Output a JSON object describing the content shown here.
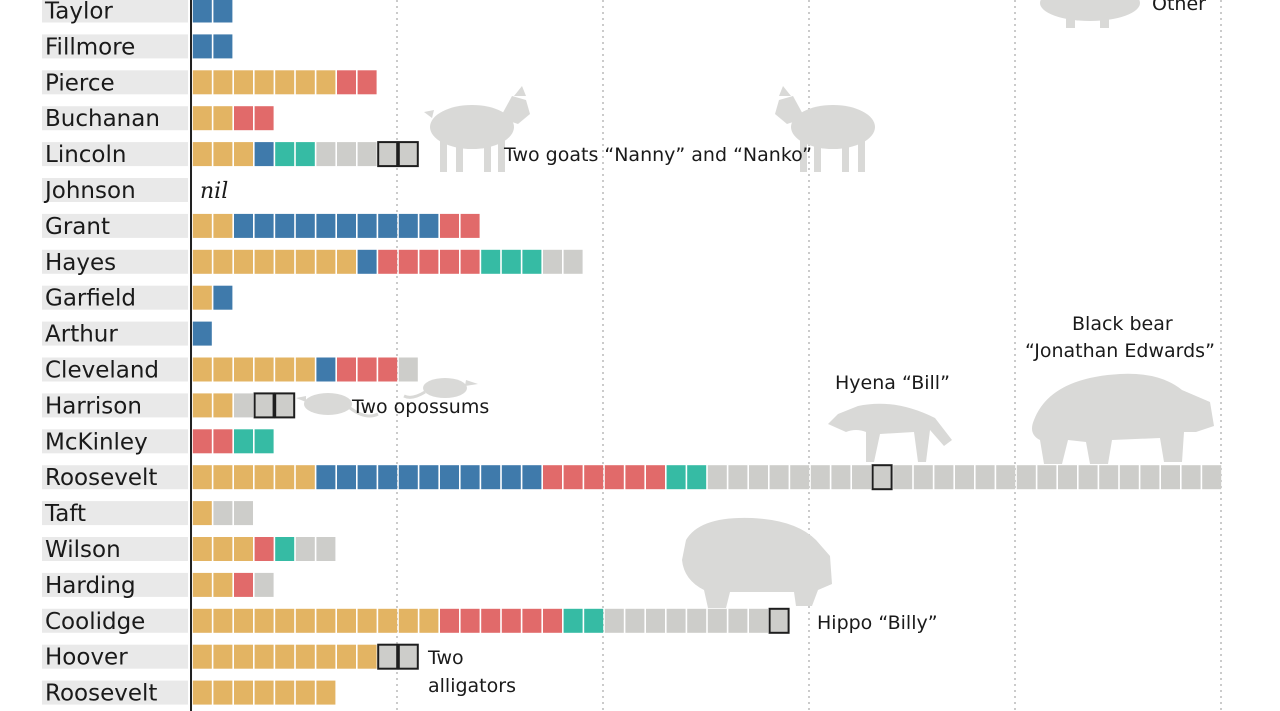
{
  "colors": {
    "dog": "#e3b463",
    "horse": "#3f7aab",
    "bird": "#e16a6a",
    "cat": "#36bba4",
    "other": "#cdcdca",
    "highlight": "#cdcdca",
    "label_bg": "#e9e9e9"
  },
  "legend": {
    "other_label": "Other"
  },
  "chart_data": {
    "type": "bar",
    "orientation": "horizontal-stacked-units",
    "title": "",
    "xlabel": "",
    "ylabel": "",
    "grid": true,
    "segment_order": [
      "dog",
      "horse",
      "bird",
      "cat",
      "other",
      "highlight"
    ],
    "rows": [
      {
        "name": "Taylor",
        "counts": {
          "horse": 2
        }
      },
      {
        "name": "Fillmore",
        "counts": {
          "horse": 2
        }
      },
      {
        "name": "Pierce",
        "counts": {
          "dog": 7,
          "bird": 2
        }
      },
      {
        "name": "Buchanan",
        "counts": {
          "dog": 2,
          "bird": 2
        }
      },
      {
        "name": "Lincoln",
        "counts": {
          "dog": 3,
          "horse": 1,
          "cat": 2,
          "other": 3,
          "highlight": 2
        }
      },
      {
        "name": "Johnson",
        "counts": {},
        "note": "nil"
      },
      {
        "name": "Grant",
        "counts": {
          "dog": 2,
          "horse": 10,
          "bird": 2
        }
      },
      {
        "name": "Hayes",
        "counts": {
          "dog": 8,
          "horse": 1,
          "bird": 5,
          "cat": 3,
          "other": 2
        }
      },
      {
        "name": "Garfield",
        "counts": {
          "dog": 1,
          "horse": 1
        }
      },
      {
        "name": "Arthur",
        "counts": {
          "horse": 1
        }
      },
      {
        "name": "Cleveland",
        "counts": {
          "dog": 6,
          "horse": 1,
          "bird": 3,
          "other": 1
        }
      },
      {
        "name": "Harrison",
        "counts": {
          "dog": 2,
          "other": 1,
          "highlight": 2
        }
      },
      {
        "name": "McKinley",
        "counts": {
          "bird": 2,
          "cat": 2
        }
      },
      {
        "name": "Roosevelt",
        "counts": {
          "dog": 6,
          "horse": 11,
          "bird": 6,
          "cat": 2,
          "other": 25
        },
        "highlight_indices": [
          33,
          50
        ]
      },
      {
        "name": "Taft",
        "counts": {
          "dog": 1,
          "other": 2
        }
      },
      {
        "name": "Wilson",
        "counts": {
          "dog": 3,
          "bird": 1,
          "cat": 1,
          "other": 2
        }
      },
      {
        "name": "Harding",
        "counts": {
          "dog": 2,
          "bird": 1,
          "other": 1
        }
      },
      {
        "name": "Coolidge",
        "counts": {
          "dog": 12,
          "bird": 6,
          "cat": 2,
          "other": 8,
          "highlight": 1
        }
      },
      {
        "name": "Hoover",
        "counts": {
          "dog": 9,
          "highlight": 2
        }
      },
      {
        "name": "Roosevelt",
        "counts": {
          "dog": 7
        }
      }
    ]
  },
  "annotations": {
    "goats": "Two goats “Nanny” and “Nanko”",
    "opossums": "Two opossums",
    "hyena": "Hyena “Bill”",
    "bear_line1": "Black bear",
    "bear_line2": "“Jonathan Edwards”",
    "hippo": "Hippo “Billy”",
    "alligators_line1": "Two",
    "alligators_line2": "alligators"
  }
}
